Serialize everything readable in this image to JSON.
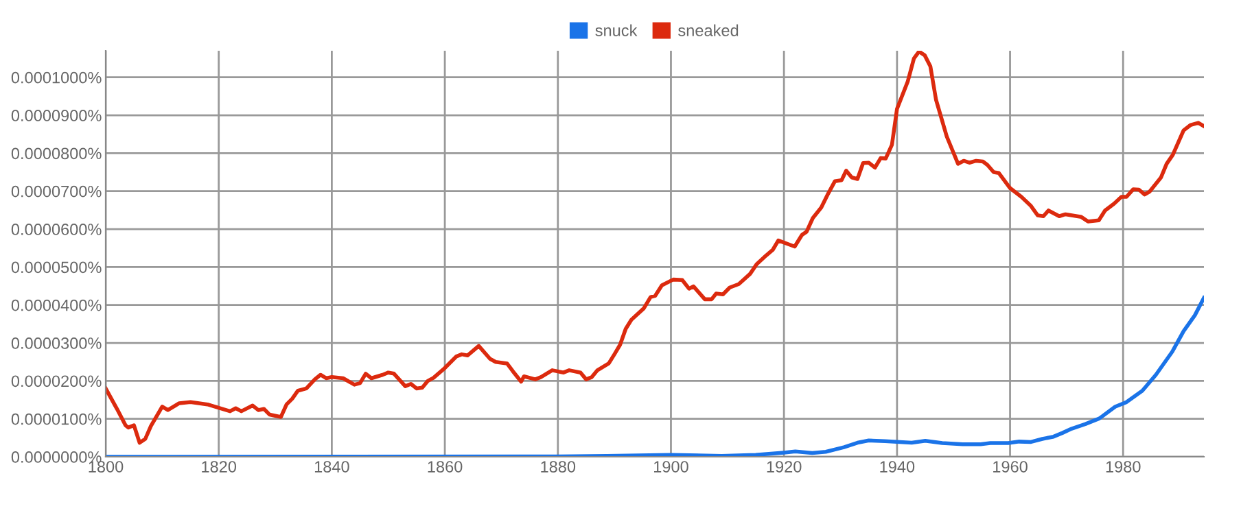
{
  "chart_data": {
    "type": "line",
    "legend": "top",
    "grid": true,
    "marker": "none",
    "line_style": "solid",
    "xlim": [
      1800,
      1994.3
    ],
    "xticks": [
      1800,
      1820,
      1840,
      1860,
      1880,
      1900,
      1920,
      1940,
      1960,
      1980
    ],
    "ylim": [
      0,
      0.000107
    ],
    "yticks": [
      {
        "value": 0,
        "label": "0.0000000%"
      },
      {
        "value": 1e-05,
        "label": "0.0000100%"
      },
      {
        "value": 2e-05,
        "label": "0.0000200%"
      },
      {
        "value": 3e-05,
        "label": "0.0000300%"
      },
      {
        "value": 4e-05,
        "label": "0.0000400%"
      },
      {
        "value": 5e-05,
        "label": "0.0000500%"
      },
      {
        "value": 6e-05,
        "label": "0.0000600%"
      },
      {
        "value": 7e-05,
        "label": "0.0000700%"
      },
      {
        "value": 8e-05,
        "label": "0.0000800%"
      },
      {
        "value": 9e-05,
        "label": "0.0000900%"
      },
      {
        "value": 0.0001,
        "label": "0.0001000%"
      }
    ],
    "series": [
      {
        "name": "snuck",
        "color": "#1a73e8",
        "x": [
          1800,
          1880,
          1888.7,
          1900,
          1909,
          1915,
          1920,
          1922,
          1925,
          1927.4,
          1930.6,
          1933,
          1935,
          1937.9,
          1940.5,
          1942.6,
          1945,
          1948,
          1951.6,
          1954.8,
          1956.5,
          1959.7,
          1961.6,
          1963.7,
          1965.7,
          1967.7,
          1969.3,
          1970.9,
          1973.3,
          1975.8,
          1978.6,
          1980.6,
          1983.4,
          1985.8,
          1988.7,
          1990.7,
          1992.7,
          1994.3
        ],
        "values": [
          0,
          1e-07,
          2e-07,
          5e-07,
          2e-07,
          5e-07,
          1.1e-06,
          1.4e-06,
          1e-06,
          1.3e-06,
          2.5e-06,
          3.7e-06,
          4.3e-06,
          4.1e-06,
          3.9e-06,
          3.7e-06,
          4.2e-06,
          3.6e-06,
          3.3e-06,
          3.3e-06,
          3.6e-06,
          3.6e-06,
          4e-06,
          3.9e-06,
          4.7e-06,
          5.3e-06,
          6.3e-06,
          7.4e-06,
          8.6e-06,
          1.01e-05,
          1.32e-05,
          1.44e-05,
          1.74e-05,
          2.16e-05,
          2.77e-05,
          3.31e-05,
          3.73e-05,
          4.19e-05
        ]
      },
      {
        "name": "sneaked",
        "color": "#dc2a0e",
        "x": [
          1800,
          1802,
          1803.5,
          1804,
          1805,
          1806,
          1807,
          1808,
          1810,
          1811,
          1813,
          1815,
          1818,
          1820,
          1822,
          1823,
          1824,
          1826,
          1827,
          1828,
          1829,
          1831,
          1832,
          1833,
          1834,
          1835.5,
          1837,
          1838,
          1839,
          1840,
          1842,
          1844,
          1845,
          1846,
          1847,
          1849,
          1850,
          1851,
          1853,
          1854,
          1855,
          1856,
          1857,
          1858,
          1860,
          1862,
          1863,
          1864,
          1866,
          1868,
          1869,
          1871,
          1872,
          1873.5,
          1874,
          1876,
          1877,
          1879,
          1881,
          1882,
          1884,
          1885,
          1886,
          1887,
          1889,
          1890,
          1891,
          1892,
          1893,
          1895.2,
          1896.4,
          1897.2,
          1898.4,
          1900.4,
          1902,
          1903.2,
          1904,
          1906,
          1907.2,
          1908,
          1909.2,
          1910.4,
          1912,
          1914,
          1915.2,
          1916.8,
          1918,
          1919,
          1921.9,
          1923.2,
          1924,
          1925.1,
          1926.6,
          1927.8,
          1929,
          1930.2,
          1931,
          1932,
          1933,
          1934,
          1935,
          1936.1,
          1937.1,
          1938,
          1939.1,
          1940,
          1941.9,
          1943,
          1943.9,
          1944.9,
          1945.9,
          1946.9,
          1948.8,
          1949.8,
          1950.8,
          1951.8,
          1952.8,
          1954,
          1955.2,
          1956,
          1957.1,
          1958,
          1960,
          1962,
          1963.7,
          1964.9,
          1965.9,
          1966.8,
          1968.7,
          1969.8,
          1972.6,
          1973.8,
          1975.7,
          1976.8,
          1978.4,
          1979.7,
          1980.6,
          1981.8,
          1982.8,
          1983.8,
          1984.7,
          1986.7,
          1987.7,
          1988.8,
          1990.7,
          1991.9,
          1993.3,
          1994.3
        ],
        "values": [
          1.8e-05,
          1.26e-05,
          8.3e-06,
          7.7e-06,
          8.3e-06,
          3.7e-06,
          4.7e-06,
          8.1e-06,
          1.32e-05,
          1.23e-05,
          1.41e-05,
          1.44e-05,
          1.38e-05,
          1.29e-05,
          1.2e-05,
          1.28e-05,
          1.2e-05,
          1.35e-05,
          1.23e-05,
          1.26e-05,
          1.11e-05,
          1.05e-05,
          1.38e-05,
          1.53e-05,
          1.74e-05,
          1.8e-05,
          2.04e-05,
          2.16e-05,
          2.07e-05,
          2.1e-05,
          2.07e-05,
          1.9e-05,
          1.94e-05,
          2.19e-05,
          2.07e-05,
          2.16e-05,
          2.22e-05,
          2.19e-05,
          1.86e-05,
          1.92e-05,
          1.8e-05,
          1.82e-05,
          2e-05,
          2.08e-05,
          2.34e-05,
          2.64e-05,
          2.7e-05,
          2.67e-05,
          2.92e-05,
          2.58e-05,
          2.5e-05,
          2.46e-05,
          2.26e-05,
          1.98e-05,
          2.12e-05,
          2.04e-05,
          2.1e-05,
          2.28e-05,
          2.22e-05,
          2.28e-05,
          2.22e-05,
          2.04e-05,
          2.1e-05,
          2.28e-05,
          2.46e-05,
          2.7e-05,
          2.95e-05,
          3.37e-05,
          3.61e-05,
          3.91e-05,
          4.21e-05,
          4.24e-05,
          4.52e-05,
          4.67e-05,
          4.66e-05,
          4.43e-05,
          4.49e-05,
          4.15e-05,
          4.15e-05,
          4.3e-05,
          4.28e-05,
          4.46e-05,
          4.55e-05,
          4.82e-05,
          5.08e-05,
          5.3e-05,
          5.45e-05,
          5.7e-05,
          5.54e-05,
          5.85e-05,
          5.93e-05,
          6.29e-05,
          6.57e-05,
          6.93e-05,
          7.26e-05,
          7.29e-05,
          7.54e-05,
          7.36e-05,
          7.32e-05,
          7.74e-05,
          7.75e-05,
          7.62e-05,
          7.87e-05,
          7.86e-05,
          8.22e-05,
          9.17e-05,
          9.89e-05,
          0.000105,
          0.0001068,
          0.0001058,
          0.0001029,
          9.41e-05,
          8.44e-05,
          8.08e-05,
          7.72e-05,
          7.8e-05,
          7.75e-05,
          7.8e-05,
          7.78e-05,
          7.69e-05,
          7.5e-05,
          7.48e-05,
          7.08e-05,
          6.85e-05,
          6.61e-05,
          6.36e-05,
          6.34e-05,
          6.49e-05,
          6.34e-05,
          6.39e-05,
          6.32e-05,
          6.2e-05,
          6.23e-05,
          6.49e-05,
          6.67e-05,
          6.85e-05,
          6.85e-05,
          7.05e-05,
          7.04e-05,
          6.91e-05,
          6.99e-05,
          7.36e-05,
          7.72e-05,
          7.96e-05,
          8.6e-05,
          8.74e-05,
          8.8e-05,
          8.71e-05
        ]
      }
    ]
  }
}
